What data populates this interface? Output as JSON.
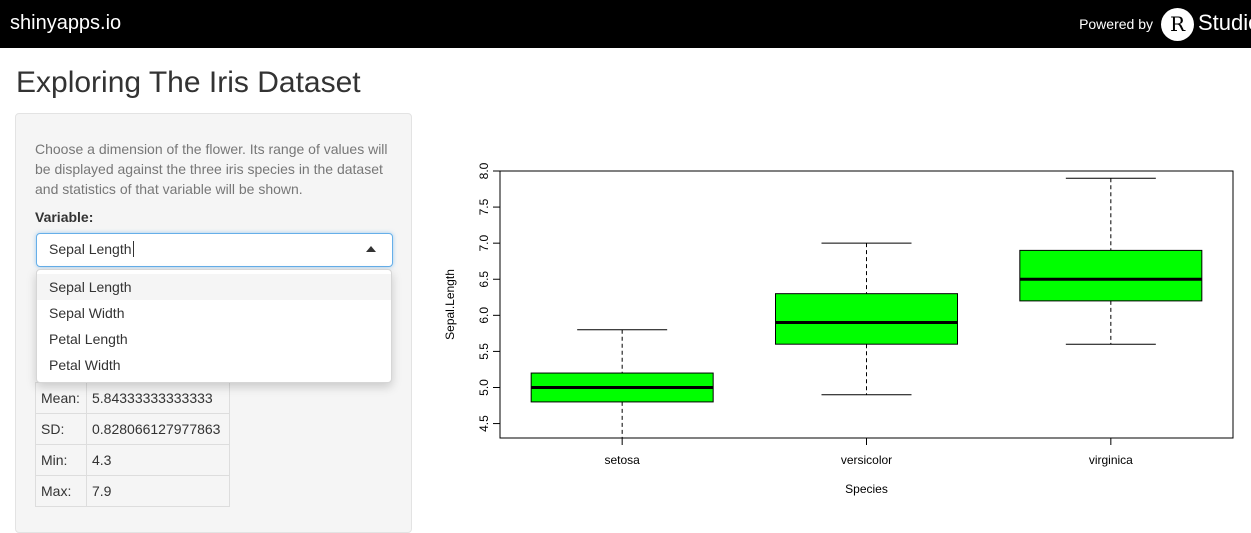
{
  "navbar": {
    "brand": "shinyapps.io",
    "powered_by": "Powered by",
    "logo_letter": "R",
    "logo_text": "Studio"
  },
  "page": {
    "title": "Exploring The Iris Dataset"
  },
  "sidebar": {
    "description": "Choose a dimension of the flower. Its range of values will be displayed against the three iris species in the dataset and statistics of that variable will be shown.",
    "variable_label": "Variable:",
    "select": {
      "value": "Sepal Length",
      "options": [
        "Sepal Length",
        "Sepal Width",
        "Petal Length",
        "Petal Width"
      ],
      "highlighted_index": 0
    },
    "stats": [
      {
        "label": "Mean:",
        "value": "5.84333333333333"
      },
      {
        "label": "SD:",
        "value": "0.828066127977863"
      },
      {
        "label": "Min:",
        "value": "4.3"
      },
      {
        "label": "Max:",
        "value": "7.9"
      }
    ]
  },
  "colors": {
    "navbar_bg": "#000000",
    "box_fill": "#00ff00",
    "focus_border": "#66afe9"
  },
  "chart_data": {
    "type": "boxplot",
    "xlabel": "Species",
    "ylabel": "Sepal.Length",
    "ylim": [
      4.3,
      8.0
    ],
    "yticks": [
      "4.5",
      "5.0",
      "5.5",
      "6.0",
      "6.5",
      "7.0",
      "7.5",
      "8.0"
    ],
    "categories": [
      "setosa",
      "versicolor",
      "virginica"
    ],
    "boxes": [
      {
        "name": "setosa",
        "min": 4.3,
        "q1": 4.8,
        "median": 5.0,
        "q3": 5.2,
        "max": 5.8
      },
      {
        "name": "versicolor",
        "min": 4.9,
        "q1": 5.6,
        "median": 5.9,
        "q3": 6.3,
        "max": 7.0
      },
      {
        "name": "virginica",
        "min": 5.6,
        "q1": 6.2,
        "median": 6.5,
        "q3": 6.9,
        "max": 7.9
      }
    ],
    "grid": false,
    "fill_color": "#00ff00"
  }
}
